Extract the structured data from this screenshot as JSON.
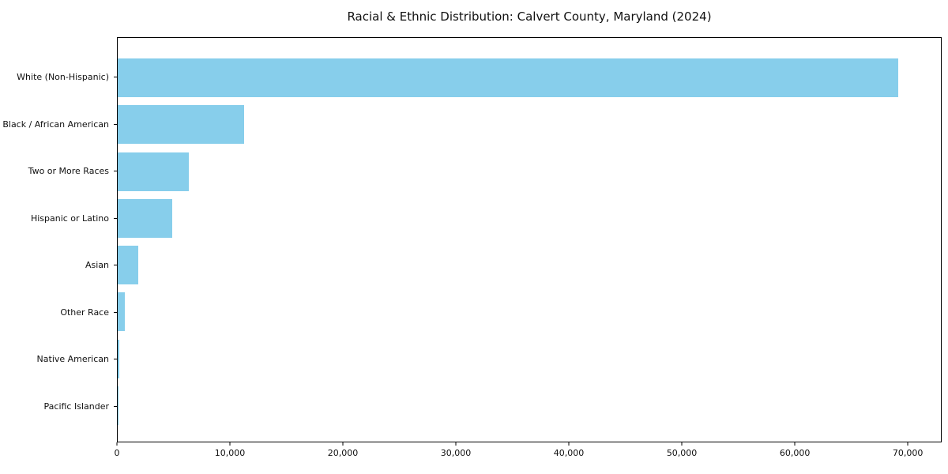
{
  "title": "Racial & Ethnic Distribution: Calvert County, Maryland (2024)",
  "chart_data": {
    "type": "bar",
    "orientation": "horizontal",
    "title": "Racial & Ethnic Distribution: Calvert County, Maryland (2024)",
    "categories": [
      "White (Non-Hispanic)",
      "Black / African American",
      "Two or More Races",
      "Hispanic or Latino",
      "Asian",
      "Other Race",
      "Native American",
      "Pacific Islander"
    ],
    "values": [
      69200,
      11200,
      6300,
      4800,
      1800,
      650,
      120,
      30
    ],
    "bar_color": "#87CEEB",
    "xlabel": "",
    "ylabel": "",
    "xlim": [
      0,
      73000
    ],
    "x_tick_values": [
      0,
      10000,
      20000,
      30000,
      40000,
      50000,
      60000,
      70000
    ],
    "x_tick_labels": [
      "0",
      "10,000",
      "20,000",
      "30,000",
      "40,000",
      "50,000",
      "60,000",
      "70,000"
    ],
    "grid": false,
    "legend": "none",
    "background_color": "#ffffff",
    "spine_color": "#000000"
  }
}
